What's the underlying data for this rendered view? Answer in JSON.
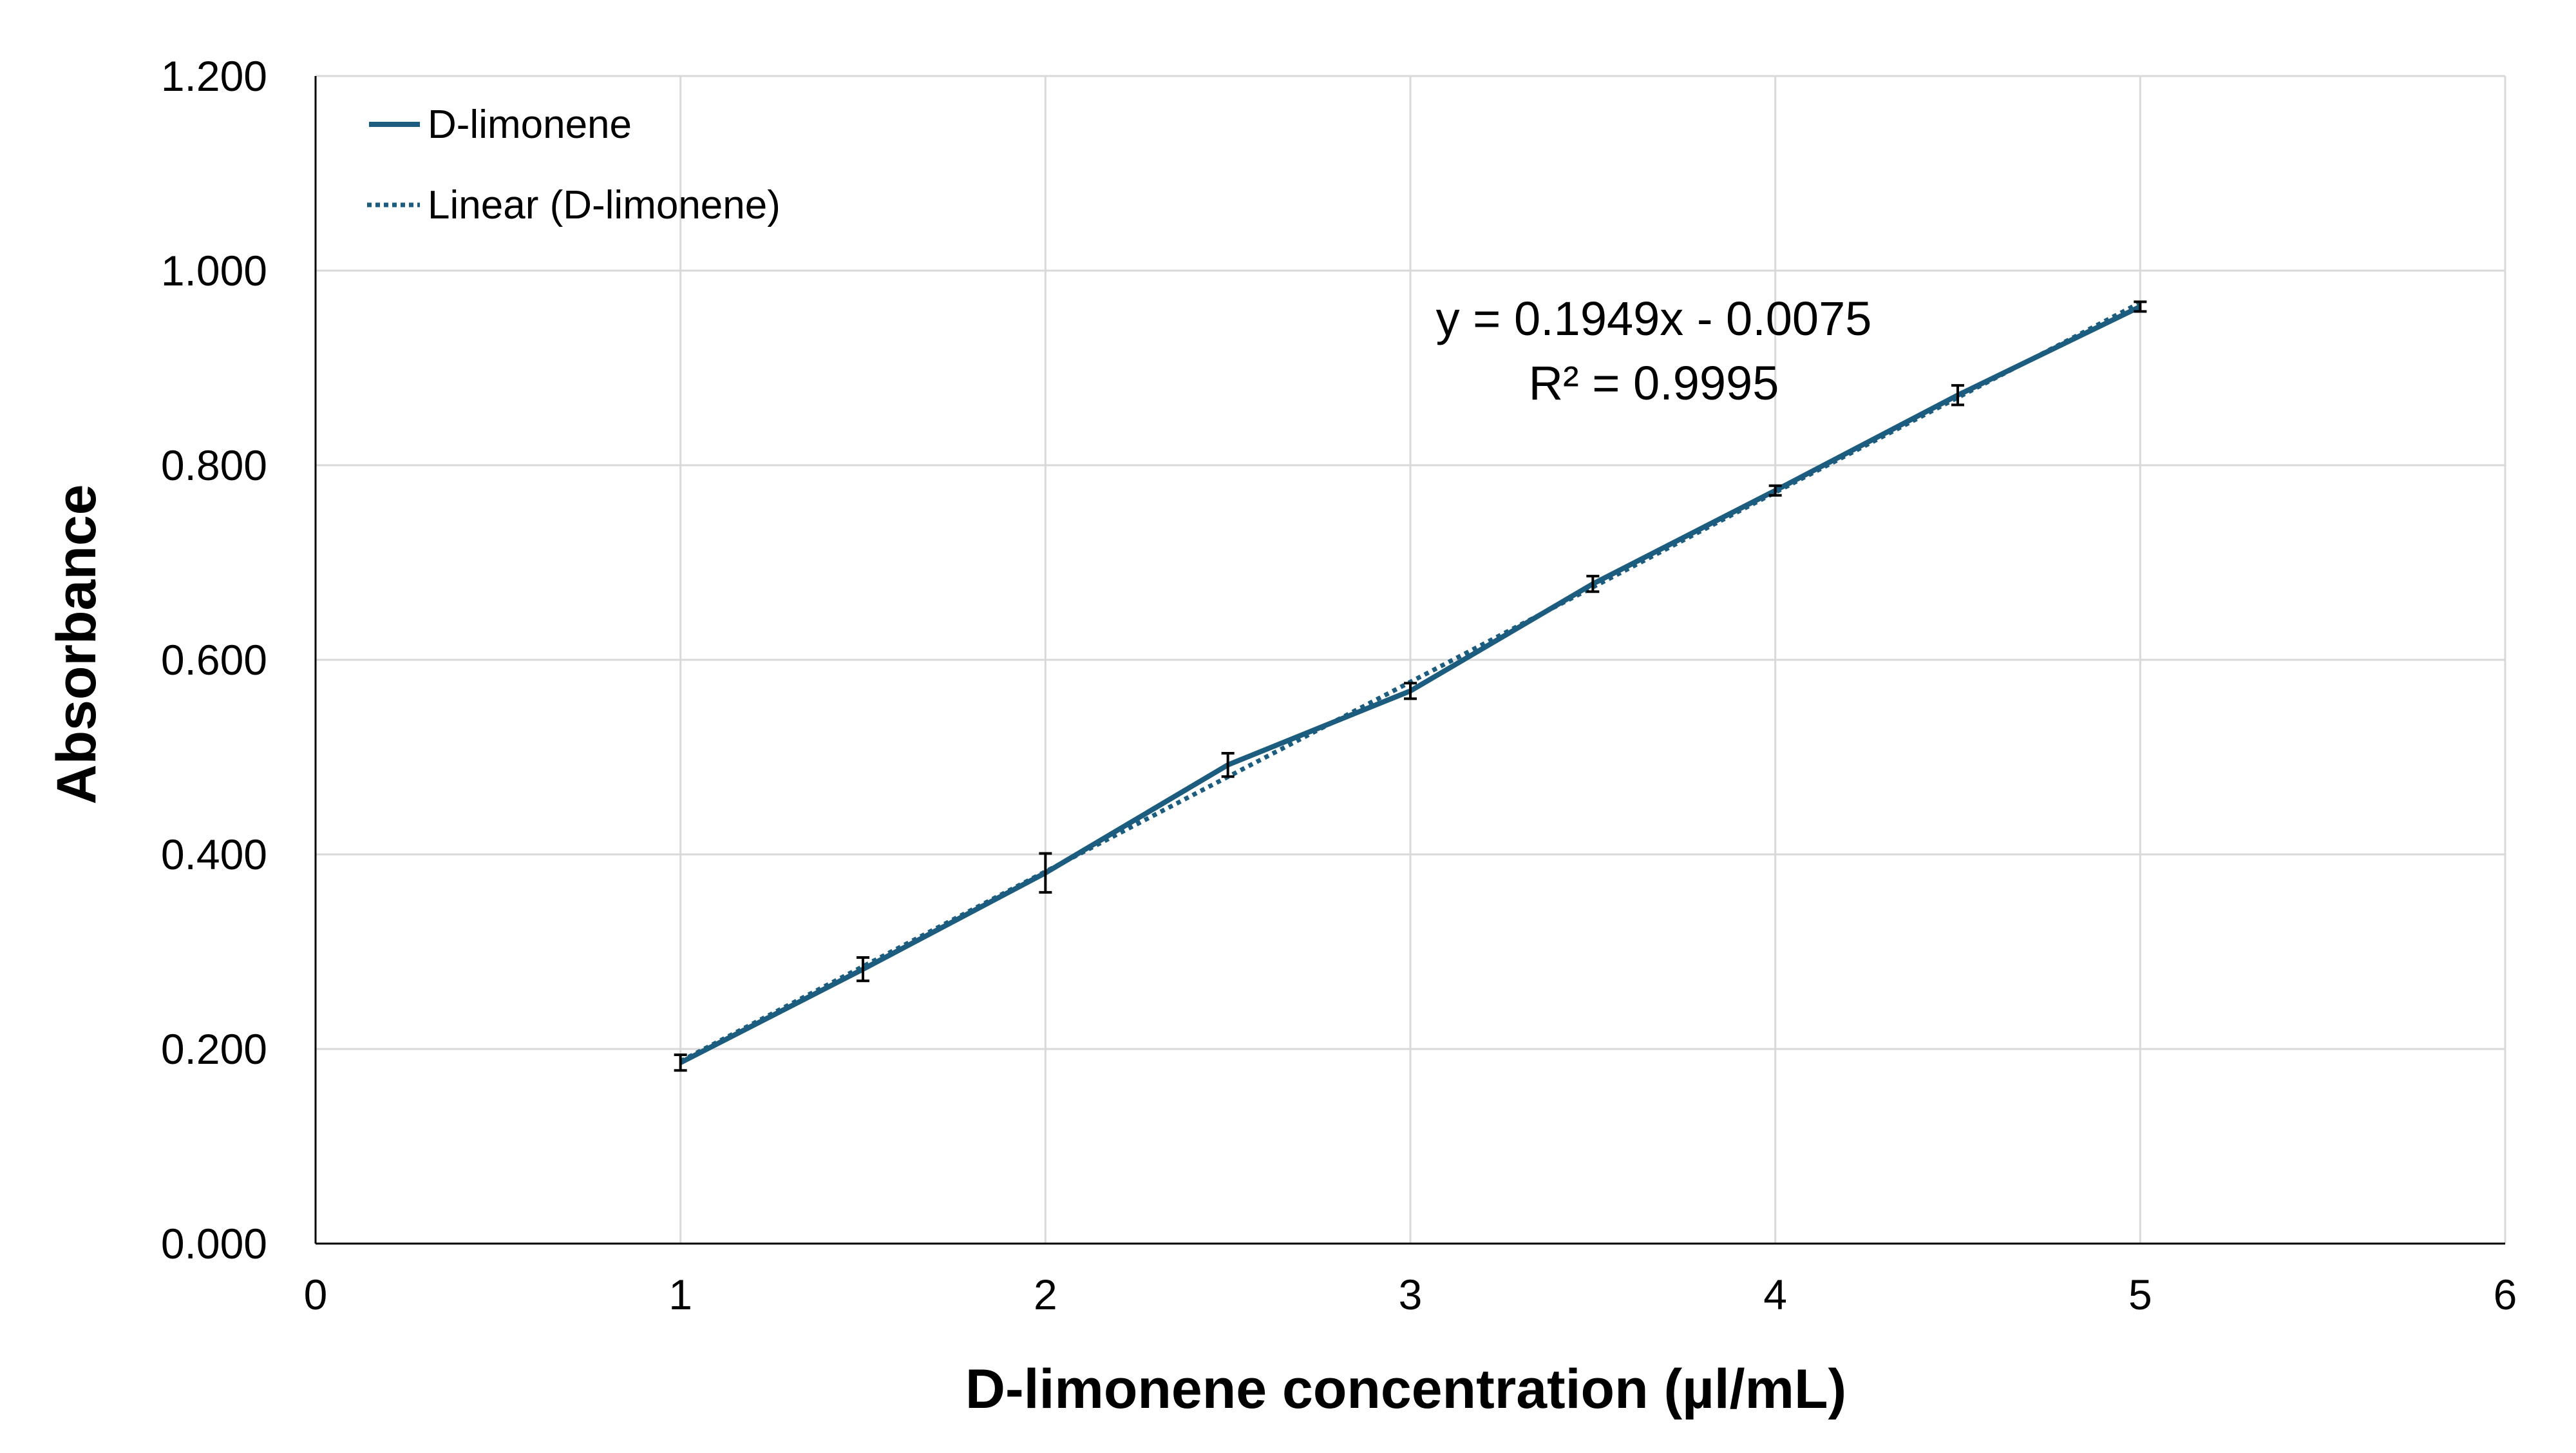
{
  "chart_data": {
    "type": "line",
    "xlabel": "D-limonene concentration (µl/mL)",
    "ylabel": "Absorbance",
    "xlim": [
      0,
      6
    ],
    "ylim": [
      0,
      1.2
    ],
    "x_ticks": [
      "0",
      "1",
      "2",
      "3",
      "4",
      "5",
      "6"
    ],
    "y_ticks": [
      "0.000",
      "0.200",
      "0.400",
      "0.600",
      "0.800",
      "1.000",
      "1.200"
    ],
    "grid": true,
    "legend_position": "top-left",
    "series": [
      {
        "name": "D-limonene",
        "color": "#1c5d7f",
        "style": "solid",
        "x": [
          1,
          1.5,
          2,
          2.5,
          3,
          3.5,
          4,
          4.5,
          5
        ],
        "y": [
          0.186,
          0.282,
          0.381,
          0.492,
          0.568,
          0.678,
          0.774,
          0.872,
          0.963
        ],
        "error": [
          0.008,
          0.012,
          0.02,
          0.012,
          0.008,
          0.008,
          0.005,
          0.01,
          0.005
        ]
      },
      {
        "name": "Linear (D-limonene)",
        "color": "#1c5d7f",
        "style": "dotted",
        "trendline": {
          "slope": 0.1949,
          "intercept": -0.0075,
          "x_range": [
            1,
            5
          ]
        }
      }
    ],
    "annotations": {
      "equation": "y = 0.1949x - 0.0075",
      "r_squared": "R² = 0.9995"
    }
  }
}
